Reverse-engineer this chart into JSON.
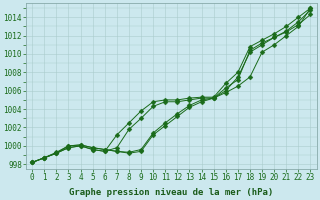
{
  "x": [
    0,
    1,
    2,
    3,
    4,
    5,
    6,
    7,
    8,
    9,
    10,
    11,
    12,
    13,
    14,
    15,
    16,
    17,
    18,
    19,
    20,
    21,
    22,
    23
  ],
  "line1": [
    998.2,
    998.7,
    999.2,
    1000.0,
    1000.1,
    999.8,
    999.6,
    999.4,
    999.2,
    999.4,
    1001.2,
    1002.2,
    1003.2,
    1004.2,
    1004.8,
    1005.2,
    1006.3,
    1007.2,
    1010.4,
    1011.2,
    1011.8,
    1012.5,
    1013.5,
    1014.8
  ],
  "line2": [
    998.2,
    998.7,
    999.3,
    1000.0,
    1000.1,
    999.8,
    999.6,
    999.4,
    999.3,
    999.6,
    1001.4,
    1002.5,
    1003.5,
    1004.4,
    1005.0,
    1005.2,
    1006.0,
    1007.5,
    1010.2,
    1011.0,
    1011.8,
    1012.4,
    1013.2,
    1014.3
  ],
  "line3": [
    998.2,
    998.7,
    999.2,
    999.8,
    1000.0,
    999.6,
    999.4,
    999.8,
    1001.8,
    1003.0,
    1004.3,
    1004.8,
    1004.8,
    1005.0,
    1005.2,
    1005.2,
    1005.8,
    1006.5,
    1007.5,
    1010.2,
    1011.0,
    1012.0,
    1013.0,
    1015.0
  ],
  "line4": [
    998.2,
    998.7,
    999.2,
    999.8,
    1000.0,
    999.6,
    999.4,
    1001.2,
    1002.5,
    1003.8,
    1004.8,
    1005.0,
    1005.0,
    1005.2,
    1005.3,
    1005.3,
    1006.8,
    1008.0,
    1010.8,
    1011.5,
    1012.2,
    1013.0,
    1014.0,
    1015.0
  ],
  "ylim": [
    997.5,
    1015.5
  ],
  "yticks": [
    998,
    1000,
    1002,
    1004,
    1006,
    1008,
    1010,
    1012,
    1014
  ],
  "xticks": [
    0,
    1,
    2,
    3,
    4,
    5,
    6,
    7,
    8,
    9,
    10,
    11,
    12,
    13,
    14,
    15,
    16,
    17,
    18,
    19,
    20,
    21,
    22,
    23
  ],
  "bg_color": "#cce8ee",
  "grid_color_minor": "#aacccc",
  "grid_color_major": "#88aaaa",
  "line_color": "#1a6b1a",
  "xlabel": "Graphe pression niveau de la mer (hPa)",
  "xlabel_color": "#1a5c1a",
  "tick_fontsize": 5.5,
  "xlabel_fontsize": 6.5
}
